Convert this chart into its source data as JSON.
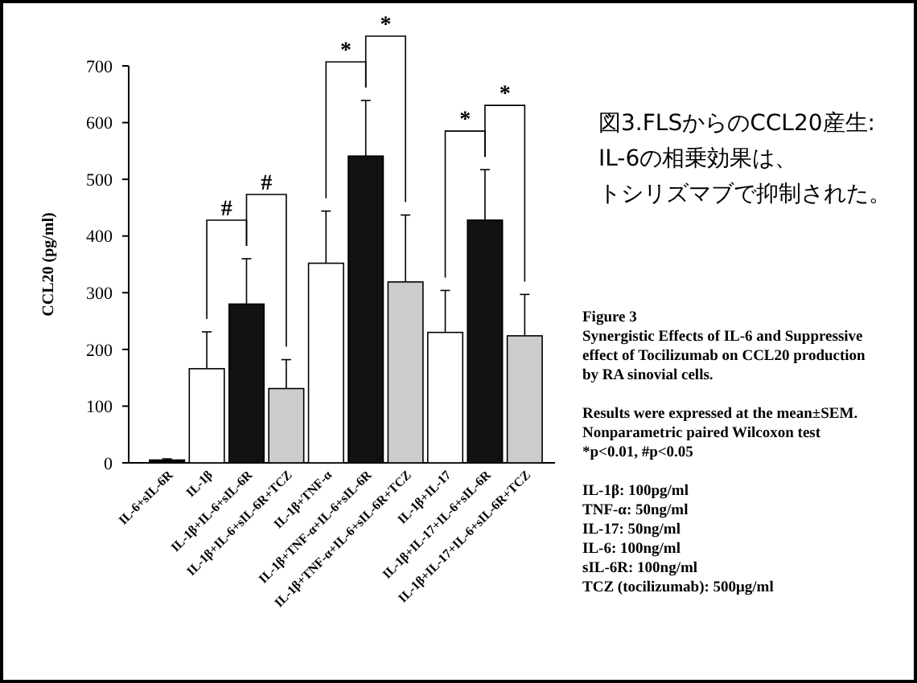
{
  "chart_data": {
    "type": "bar",
    "title": "図3.FLSからのCCL20産生:IL-6の相乗効果は、トシリズマブで抑制された。",
    "ylabel": "CCL20  (pg/ml)",
    "categories": [
      "IL-6+sIL-6R",
      "IL-1β",
      "IL-1β+IL-6+sIL-6R",
      "IL-1β+IL-6+sIL-6R+TCZ",
      "IL-1β+TNF-α",
      "IL-1β+TNF-α+IL-6+sIL-6R",
      "IL-1β+TNF-α+IL-6+sIL-6R+TCZ",
      "IL-1β+IL-17",
      "IL-1β+IL-17+IL-6+sIL-6R",
      "IL-1β+IL-17+IL-6+sIL-6R+TCZ"
    ],
    "values": [
      5,
      166,
      280,
      131,
      352,
      541,
      319,
      230,
      428,
      224
    ],
    "colors": [
      "#000000",
      "#ffffff",
      "#111111",
      "#cccccc",
      "#ffffff",
      "#111111",
      "#cccccc",
      "#ffffff",
      "#111111",
      "#cccccc"
    ],
    "errors": [
      [
        5,
        7
      ],
      [
        166,
        231
      ],
      [
        280,
        360
      ],
      [
        131,
        182
      ],
      [
        352,
        444
      ],
      [
        541,
        639
      ],
      [
        319,
        437
      ],
      [
        230,
        304
      ],
      [
        428,
        517
      ],
      [
        224,
        297
      ]
    ],
    "ylim": [
      0,
      700
    ],
    "yticks": [
      0,
      100,
      200,
      300,
      400,
      500,
      600,
      700
    ],
    "grid": false,
    "annotations": [
      "#",
      "#",
      "*",
      "*",
      "*",
      "*",
      "Figure 3\nSynergistic Effects of IL-6 and Suppressive\neffect of Tocilizumab on CCL20 production\nby RA sinovial cells.",
      "Results were expressed at the mean±SEM.\nNonparametric paired Wilcoxon test\n*p<0.01,  #p<0.05",
      "IL-1β: 100pg/ml\nTNF-α: 50ng/ml\nIL-17: 50ng/ml\nIL-6: 100ng/ml\nsIL-6R: 100ng/ml\nTCZ (tocilizumab): 500μg/ml"
    ]
  }
}
